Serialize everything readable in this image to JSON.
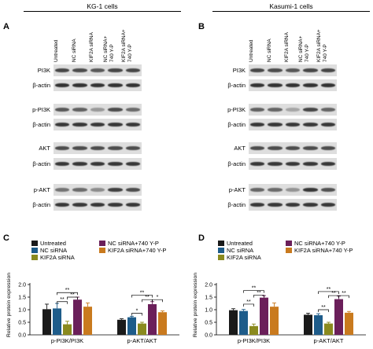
{
  "panels": {
    "A": {
      "letter": "A",
      "cell_line": "KG-1 cells"
    },
    "B": {
      "letter": "B",
      "cell_line": "Kasumi-1 cells"
    },
    "C": {
      "letter": "C"
    },
    "D": {
      "letter": "D"
    }
  },
  "lanes": [
    "Untreated",
    "NC siRNA",
    "KIF2A siRNA",
    "NC siRNA+\n740 Y-P",
    "KIF2A siRNA+\n740 Y-P"
  ],
  "blots": {
    "labels": [
      "PI3K",
      "β-actin",
      "p-PI3K",
      "β-actin",
      "AKT",
      "β-actin",
      "p-AKT",
      "β-actin"
    ],
    "A_intensity": [
      [
        0.72,
        0.7,
        0.65,
        0.72,
        0.72
      ],
      [
        0.8,
        0.8,
        0.8,
        0.8,
        0.8
      ],
      [
        0.65,
        0.62,
        0.4,
        0.7,
        0.58
      ],
      [
        0.78,
        0.78,
        0.78,
        0.78,
        0.78
      ],
      [
        0.7,
        0.7,
        0.7,
        0.7,
        0.7
      ],
      [
        0.78,
        0.78,
        0.78,
        0.78,
        0.78
      ],
      [
        0.55,
        0.58,
        0.45,
        0.75,
        0.7
      ],
      [
        0.78,
        0.78,
        0.78,
        0.78,
        0.78
      ]
    ],
    "B_intensity": [
      [
        0.72,
        0.7,
        0.66,
        0.72,
        0.72
      ],
      [
        0.8,
        0.8,
        0.8,
        0.8,
        0.8
      ],
      [
        0.62,
        0.6,
        0.35,
        0.72,
        0.6
      ],
      [
        0.78,
        0.78,
        0.78,
        0.78,
        0.78
      ],
      [
        0.7,
        0.7,
        0.7,
        0.7,
        0.7
      ],
      [
        0.78,
        0.78,
        0.78,
        0.78,
        0.78
      ],
      [
        0.6,
        0.58,
        0.42,
        0.78,
        0.68
      ],
      [
        0.78,
        0.78,
        0.78,
        0.78,
        0.78
      ]
    ]
  },
  "chart_data": [
    {
      "panel": "C",
      "type": "bar",
      "ylabel": "Relative protein expression",
      "ylim": [
        0,
        2.0
      ],
      "yticks": [
        0.0,
        0.5,
        1.0,
        1.5,
        2.0
      ],
      "ytick_labels": [
        "0.0",
        "0.5",
        "1.0",
        "1.5",
        "2.0"
      ],
      "categories": [
        "p-PI3K/PI3K",
        "p-AKT/AKT"
      ],
      "series": [
        {
          "name": "Untreated",
          "color": "#1a1a1a",
          "values": [
            1.02,
            0.6
          ],
          "errors": [
            0.2,
            0.04
          ]
        },
        {
          "name": "NC siRNA",
          "color": "#1e5c8a",
          "values": [
            1.05,
            0.7
          ],
          "errors": [
            0.2,
            0.04
          ]
        },
        {
          "name": "KIF2A siRNA",
          "color": "#8a8a1e",
          "values": [
            0.42,
            0.45
          ],
          "errors": [
            0.12,
            0.05
          ]
        },
        {
          "name": "NC siRNA+740 Y-P",
          "color": "#6b1f5a",
          "values": [
            1.4,
            1.22
          ],
          "errors": [
            0.1,
            0.1
          ]
        },
        {
          "name": "KIF2A siRNA+740 Y-P",
          "color": "#c97a1e",
          "values": [
            1.12,
            0.9
          ],
          "errors": [
            0.15,
            0.05
          ]
        }
      ],
      "significance": [
        {
          "group": 0,
          "from": 1,
          "to": 2,
          "label": "**",
          "y": 1.32
        },
        {
          "group": 0,
          "from": 2,
          "to": 3,
          "label": "**",
          "y": 1.5
        },
        {
          "group": 0,
          "from": 1,
          "to": 3,
          "label": "**",
          "y": 1.68
        },
        {
          "group": 1,
          "from": 1,
          "to": 2,
          "label": "*",
          "y": 0.86
        },
        {
          "group": 1,
          "from": 2,
          "to": 3,
          "label": "**",
          "y": 1.4
        },
        {
          "group": 1,
          "from": 3,
          "to": 4,
          "label": "*",
          "y": 1.4
        },
        {
          "group": 1,
          "from": 1,
          "to": 3,
          "label": "**",
          "y": 1.58
        }
      ]
    },
    {
      "panel": "D",
      "type": "bar",
      "ylabel": "Relative protein expression",
      "ylim": [
        0,
        2.0
      ],
      "yticks": [
        0.0,
        0.5,
        1.0,
        1.5,
        2.0
      ],
      "ytick_labels": [
        "0.0",
        "0.5",
        "1.0",
        "1.5",
        "2.0"
      ],
      "categories": [
        "p-PI3K/PI3K",
        "p-AKT/AKT"
      ],
      "series": [
        {
          "name": "Untreated",
          "color": "#1a1a1a",
          "values": [
            0.98,
            0.8
          ],
          "errors": [
            0.06,
            0.06
          ]
        },
        {
          "name": "NC siRNA",
          "color": "#1e5c8a",
          "values": [
            0.95,
            0.78
          ],
          "errors": [
            0.06,
            0.06
          ]
        },
        {
          "name": "KIF2A siRNA",
          "color": "#8a8a1e",
          "values": [
            0.35,
            0.45
          ],
          "errors": [
            0.08,
            0.05
          ]
        },
        {
          "name": "NC siRNA+740 Y-P",
          "color": "#6b1f5a",
          "values": [
            1.48,
            1.42
          ],
          "errors": [
            0.08,
            0.12
          ]
        },
        {
          "name": "KIF2A siRNA+740 Y-P",
          "color": "#c97a1e",
          "values": [
            1.12,
            0.88
          ],
          "errors": [
            0.15,
            0.05
          ]
        }
      ],
      "significance": [
        {
          "group": 0,
          "from": 1,
          "to": 2,
          "label": "**",
          "y": 1.22
        },
        {
          "group": 0,
          "from": 2,
          "to": 3,
          "label": "**",
          "y": 1.58
        },
        {
          "group": 0,
          "from": 1,
          "to": 3,
          "label": "**",
          "y": 1.76
        },
        {
          "group": 1,
          "from": 1,
          "to": 2,
          "label": "**",
          "y": 1.0
        },
        {
          "group": 1,
          "from": 2,
          "to": 3,
          "label": "**",
          "y": 1.56
        },
        {
          "group": 1,
          "from": 3,
          "to": 4,
          "label": "**",
          "y": 1.56
        },
        {
          "group": 1,
          "from": 1,
          "to": 3,
          "label": "**",
          "y": 1.72
        }
      ]
    }
  ]
}
